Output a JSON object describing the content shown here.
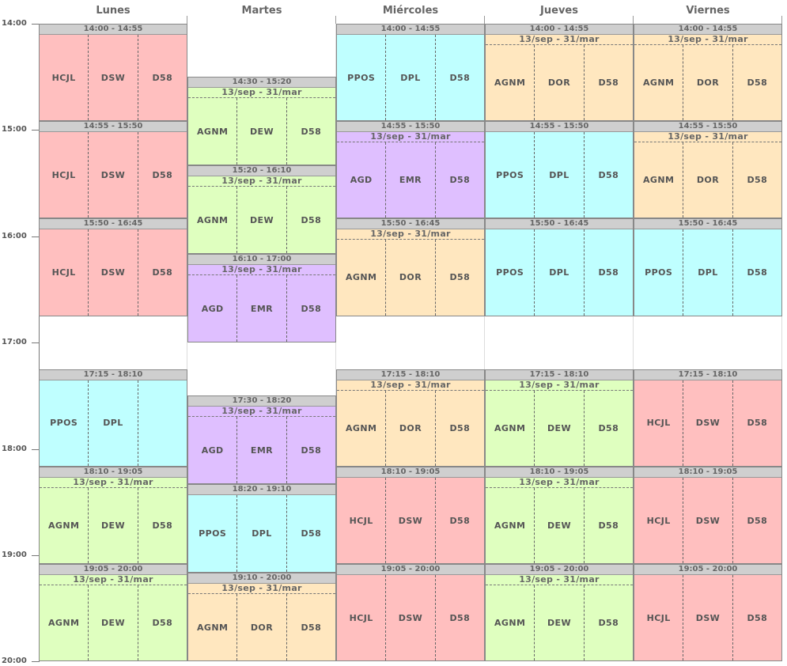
{
  "days": [
    "Lunes",
    "Martes",
    "Miércoles",
    "Jueves",
    "Viernes"
  ],
  "hours": [
    "14:00",
    "15:00",
    "16:00",
    "17:00",
    "18:00",
    "19:00",
    "20:00"
  ],
  "colors": {
    "red": "#ffbfbf",
    "cyan": "#bfffff",
    "green": "#dfffbf",
    "purple": "#dfbfff",
    "orange": "#ffe7bf"
  },
  "blocks": [
    {
      "day": 0,
      "start": "14:00",
      "end": "14:55",
      "time": "14:00 - 14:55",
      "dates": "",
      "color": "red",
      "cells": [
        "HCJL",
        "DSW",
        "D58"
      ]
    },
    {
      "day": 0,
      "start": "14:55",
      "end": "15:50",
      "time": "14:55 - 15:50",
      "dates": "",
      "color": "red",
      "cells": [
        "HCJL",
        "DSW",
        "D58"
      ]
    },
    {
      "day": 0,
      "start": "15:50",
      "end": "16:45",
      "time": "15:50 - 16:45",
      "dates": "",
      "color": "red",
      "cells": [
        "HCJL",
        "DSW",
        "D58"
      ]
    },
    {
      "day": 0,
      "start": "17:15",
      "end": "18:10",
      "time": "17:15 - 18:10",
      "dates": "",
      "color": "cyan",
      "cells": [
        "PPOS",
        "DPL",
        ""
      ]
    },
    {
      "day": 0,
      "start": "18:10",
      "end": "19:05",
      "time": "18:10 - 19:05",
      "dates": "13/sep - 31/mar",
      "color": "green",
      "cells": [
        "AGNM",
        "DEW",
        "D58"
      ]
    },
    {
      "day": 0,
      "start": "19:05",
      "end": "20:00",
      "time": "19:05 - 20:00",
      "dates": "13/sep - 31/mar",
      "color": "green",
      "cells": [
        "AGNM",
        "DEW",
        "D58"
      ]
    },
    {
      "day": 1,
      "start": "14:30",
      "end": "15:20",
      "time": "14:30 - 15:20",
      "dates": "13/sep - 31/mar",
      "color": "green",
      "cells": [
        "AGNM",
        "DEW",
        "D58"
      ]
    },
    {
      "day": 1,
      "start": "15:20",
      "end": "16:10",
      "time": "15:20 - 16:10",
      "dates": "13/sep - 31/mar",
      "color": "green",
      "cells": [
        "AGNM",
        "DEW",
        "D58"
      ]
    },
    {
      "day": 1,
      "start": "16:10",
      "end": "17:00",
      "time": "16:10 - 17:00",
      "dates": "13/sep - 31/mar",
      "color": "purple",
      "cells": [
        "AGD",
        "EMR",
        "D58"
      ]
    },
    {
      "day": 1,
      "start": "17:30",
      "end": "18:20",
      "time": "17:30 - 18:20",
      "dates": "13/sep - 31/mar",
      "color": "purple",
      "cells": [
        "AGD",
        "EMR",
        "D58"
      ]
    },
    {
      "day": 1,
      "start": "18:20",
      "end": "19:10",
      "time": "18:20 - 19:10",
      "dates": "",
      "color": "cyan",
      "cells": [
        "PPOS",
        "DPL",
        "D58"
      ]
    },
    {
      "day": 1,
      "start": "19:10",
      "end": "20:00",
      "time": "19:10 - 20:00",
      "dates": "13/sep - 31/mar",
      "color": "orange",
      "cells": [
        "AGNM",
        "DOR",
        "D58"
      ]
    },
    {
      "day": 2,
      "start": "14:00",
      "end": "14:55",
      "time": "14:00 - 14:55",
      "dates": "",
      "color": "cyan",
      "cells": [
        "PPOS",
        "DPL",
        "D58"
      ]
    },
    {
      "day": 2,
      "start": "14:55",
      "end": "15:50",
      "time": "14:55 - 15:50",
      "dates": "13/sep - 31/mar",
      "color": "purple",
      "cells": [
        "AGD",
        "EMR",
        "D58"
      ]
    },
    {
      "day": 2,
      "start": "15:50",
      "end": "16:45",
      "time": "15:50 - 16:45",
      "dates": "13/sep - 31/mar",
      "color": "orange",
      "cells": [
        "AGNM",
        "DOR",
        "D58"
      ]
    },
    {
      "day": 2,
      "start": "17:15",
      "end": "18:10",
      "time": "17:15 - 18:10",
      "dates": "13/sep - 31/mar",
      "color": "orange",
      "cells": [
        "AGNM",
        "DOR",
        "D58"
      ]
    },
    {
      "day": 2,
      "start": "18:10",
      "end": "19:05",
      "time": "18:10 - 19:05",
      "dates": "",
      "color": "red",
      "cells": [
        "HCJL",
        "DSW",
        "D58"
      ]
    },
    {
      "day": 2,
      "start": "19:05",
      "end": "20:00",
      "time": "19:05 - 20:00",
      "dates": "",
      "color": "red",
      "cells": [
        "HCJL",
        "DSW",
        "D58"
      ]
    },
    {
      "day": 3,
      "start": "14:00",
      "end": "14:55",
      "time": "14:00 - 14:55",
      "dates": "13/sep - 31/mar",
      "color": "orange",
      "cells": [
        "AGNM",
        "DOR",
        "D58"
      ]
    },
    {
      "day": 3,
      "start": "14:55",
      "end": "15:50",
      "time": "14:55 - 15:50",
      "dates": "",
      "color": "cyan",
      "cells": [
        "PPOS",
        "DPL",
        "D58"
      ]
    },
    {
      "day": 3,
      "start": "15:50",
      "end": "16:45",
      "time": "15:50 - 16:45",
      "dates": "",
      "color": "cyan",
      "cells": [
        "PPOS",
        "DPL",
        "D58"
      ]
    },
    {
      "day": 3,
      "start": "17:15",
      "end": "18:10",
      "time": "17:15 - 18:10",
      "dates": "13/sep - 31/mar",
      "color": "green",
      "cells": [
        "AGNM",
        "DEW",
        "D58"
      ]
    },
    {
      "day": 3,
      "start": "18:10",
      "end": "19:05",
      "time": "18:10 - 19:05",
      "dates": "13/sep - 31/mar",
      "color": "green",
      "cells": [
        "AGNM",
        "DEW",
        "D58"
      ]
    },
    {
      "day": 3,
      "start": "19:05",
      "end": "20:00",
      "time": "19:05 - 20:00",
      "dates": "13/sep - 31/mar",
      "color": "green",
      "cells": [
        "AGNM",
        "DEW",
        "D58"
      ]
    },
    {
      "day": 4,
      "start": "14:00",
      "end": "14:55",
      "time": "14:00 - 14:55",
      "dates": "13/sep - 31/mar",
      "color": "orange",
      "cells": [
        "AGNM",
        "DOR",
        "D58"
      ]
    },
    {
      "day": 4,
      "start": "14:55",
      "end": "15:50",
      "time": "14:55 - 15:50",
      "dates": "13/sep - 31/mar",
      "color": "orange",
      "cells": [
        "AGNM",
        "DOR",
        "D58"
      ]
    },
    {
      "day": 4,
      "start": "15:50",
      "end": "16:45",
      "time": "15:50 - 16:45",
      "dates": "",
      "color": "cyan",
      "cells": [
        "PPOS",
        "DPL",
        "D58"
      ]
    },
    {
      "day": 4,
      "start": "17:15",
      "end": "18:10",
      "time": "17:15 - 18:10",
      "dates": "",
      "color": "red",
      "cells": [
        "HCJL",
        "DSW",
        "D58"
      ]
    },
    {
      "day": 4,
      "start": "18:10",
      "end": "19:05",
      "time": "18:10 - 19:05",
      "dates": "",
      "color": "red",
      "cells": [
        "HCJL",
        "DSW",
        "D58"
      ]
    },
    {
      "day": 4,
      "start": "19:05",
      "end": "20:00",
      "time": "19:05 - 20:00",
      "dates": "",
      "color": "red",
      "cells": [
        "HCJL",
        "DSW",
        "D58"
      ]
    }
  ]
}
